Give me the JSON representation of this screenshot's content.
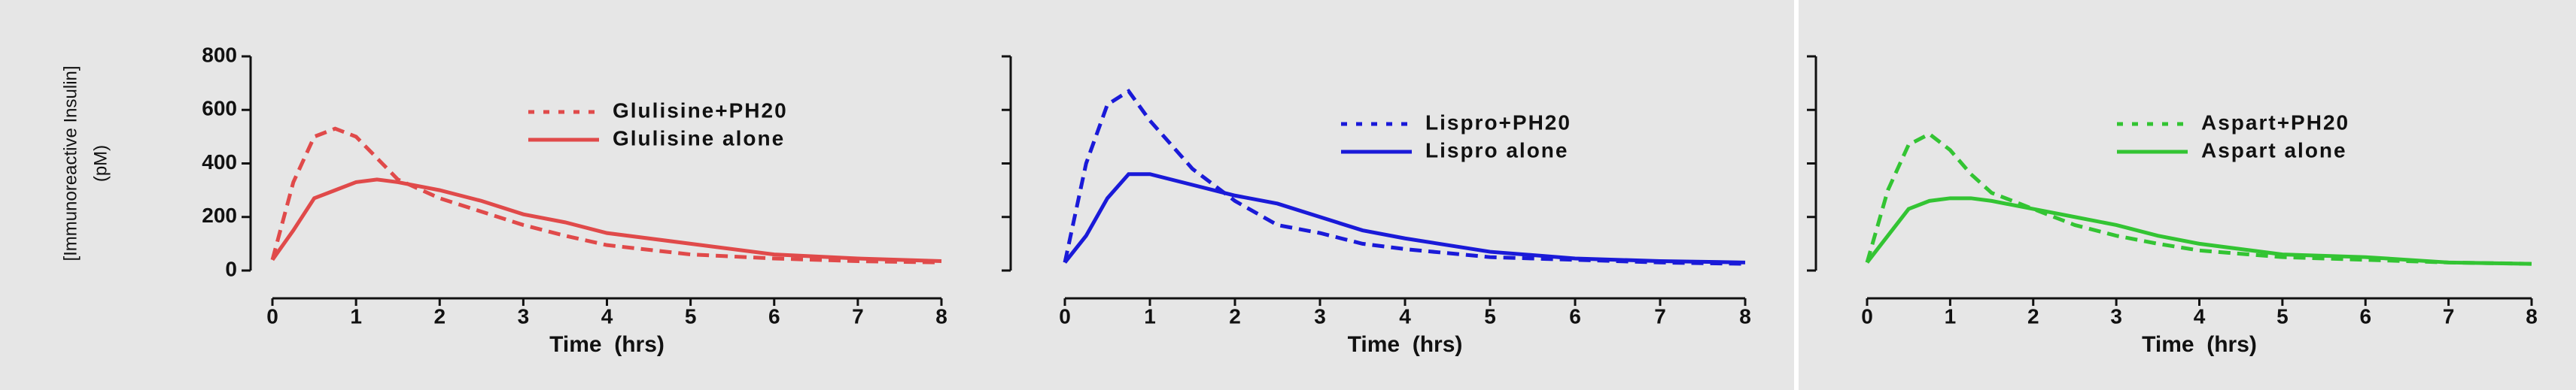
{
  "chart_data": [
    {
      "type": "line",
      "ylabel": [
        "[Immunoreactive Insulin]",
        "(pM)"
      ],
      "xlabel": "Time  (hrs)",
      "x": [
        0,
        0.25,
        0.5,
        0.75,
        1,
        1.25,
        1.5,
        2,
        2.5,
        3,
        3.5,
        4,
        5,
        6,
        7,
        8
      ],
      "xlim": [
        0,
        8
      ],
      "xticks": [
        0,
        1,
        2,
        3,
        4,
        5,
        6,
        7,
        8
      ],
      "ylim": [
        0,
        800
      ],
      "yticks": [
        0,
        200,
        400,
        600,
        800
      ],
      "ytick_labels": true,
      "legend": "upper right",
      "series": [
        {
          "name": "Glulisine+PH20",
          "color": "#e04a4a",
          "style": "dashed",
          "values": [
            40,
            330,
            500,
            530,
            500,
            420,
            340,
            270,
            220,
            170,
            130,
            95,
            60,
            45,
            35,
            30
          ]
        },
        {
          "name": "Glulisine alone",
          "color": "#e04a4a",
          "style": "solid",
          "values": [
            40,
            150,
            270,
            300,
            330,
            340,
            330,
            300,
            260,
            210,
            180,
            140,
            100,
            60,
            45,
            35
          ]
        }
      ]
    },
    {
      "type": "line",
      "xlabel": "Time  (hrs)",
      "x": [
        0,
        0.25,
        0.5,
        0.75,
        1,
        1.25,
        1.5,
        2,
        2.5,
        3,
        3.5,
        4,
        5,
        6,
        7,
        8
      ],
      "xlim": [
        0,
        8
      ],
      "xticks": [
        0,
        1,
        2,
        3,
        4,
        5,
        6,
        7,
        8
      ],
      "ylim": [
        0,
        800
      ],
      "yticks": [
        0,
        200,
        400,
        600,
        800
      ],
      "ytick_labels": false,
      "legend": "upper right",
      "series": [
        {
          "name": "Lispro+PH20",
          "color": "#1a1ad8",
          "style": "dashed",
          "values": [
            30,
            400,
            620,
            670,
            560,
            470,
            380,
            260,
            170,
            140,
            100,
            80,
            50,
            40,
            30,
            25
          ]
        },
        {
          "name": "Lispro alone",
          "color": "#1a1ad8",
          "style": "solid",
          "values": [
            30,
            130,
            270,
            360,
            360,
            340,
            320,
            280,
            250,
            200,
            150,
            120,
            70,
            45,
            35,
            30
          ]
        }
      ]
    },
    {
      "type": "line",
      "xlabel": "Time  (hrs)",
      "x": [
        0,
        0.25,
        0.5,
        0.75,
        1,
        1.25,
        1.5,
        2,
        2.5,
        3,
        3.5,
        4,
        5,
        6,
        7,
        8
      ],
      "xlim": [
        0,
        8
      ],
      "xticks": [
        0,
        1,
        2,
        3,
        4,
        5,
        6,
        7,
        8
      ],
      "ylim": [
        0,
        800
      ],
      "yticks": [
        0,
        200,
        400,
        600,
        800
      ],
      "ytick_labels": false,
      "legend": "upper right",
      "series": [
        {
          "name": "Aspart+PH20",
          "color": "#33c433",
          "style": "dashed",
          "values": [
            30,
            300,
            470,
            510,
            450,
            360,
            290,
            230,
            170,
            130,
            100,
            75,
            50,
            40,
            30,
            25
          ]
        },
        {
          "name": "Aspart alone",
          "color": "#33c433",
          "style": "solid",
          "values": [
            30,
            130,
            230,
            260,
            270,
            270,
            260,
            230,
            200,
            170,
            130,
            100,
            60,
            50,
            30,
            25
          ]
        }
      ]
    }
  ]
}
